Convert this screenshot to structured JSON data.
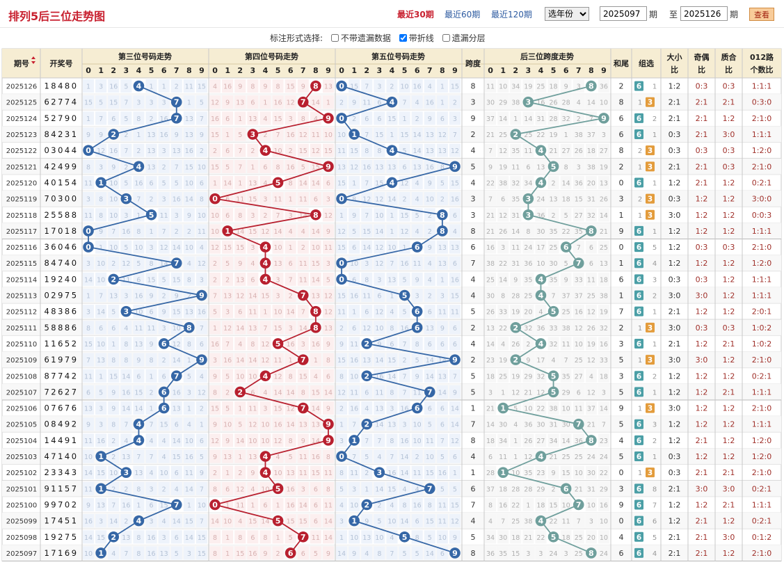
{
  "header": {
    "title": "排列5后三位走势图",
    "links": [
      "最近30期",
      "最近60期",
      "最近120期"
    ],
    "year_select": "选年份",
    "from_value": "2025097",
    "period_label": "期",
    "to_label": "至",
    "to_value": "2025126",
    "view_button": "查看"
  },
  "options": {
    "label": "标注形式选择:",
    "items": [
      {
        "label": "不带遗漏数据",
        "checked": false
      },
      {
        "label": "带折线",
        "checked": true
      },
      {
        "label": "遗漏分层",
        "checked": false
      }
    ]
  },
  "columns": {
    "issue": "期号",
    "draw": "开奖号",
    "pos3": "第三位号码走势",
    "pos4": "第四位号码走势",
    "pos5": "第五位号码走势",
    "span": "跨度",
    "span_trend": "后三位跨度走势",
    "sum_tail": "和尾",
    "group": "组选",
    "size_a": "大小",
    "size_b": "比",
    "odd_a": "奇偶",
    "odd_b": "比",
    "prime_a": "质合",
    "prime_b": "比",
    "r012_a": "012路",
    "r012_b": "个数比",
    "digits": [
      "0",
      "1",
      "2",
      "3",
      "4",
      "5",
      "6",
      "7",
      "8",
      "9"
    ]
  },
  "colors": {
    "pos3": "#3667a6",
    "pos4": "#b8202f",
    "pos5": "#3667a6",
    "span": "#6f9f9c",
    "group_six": "#4b9fa6",
    "group_three": "#e39c3c",
    "ratio": "#a0302a"
  },
  "rows": [
    {
      "issue": "2025126",
      "draw": "18480",
      "span": "8",
      "sum_tail": "2",
      "group": "6",
      "group_miss": "1",
      "size": "1:2",
      "odd": "0:3",
      "prime": "0:3",
      "r012": "1:1:1"
    },
    {
      "issue": "2025125",
      "draw": "62774",
      "span": "3",
      "sum_tail": "8",
      "group": "3",
      "group_miss": "1",
      "size": "2:1",
      "odd": "2:1",
      "prime": "2:1",
      "r012": "0:3:0"
    },
    {
      "issue": "2025124",
      "draw": "52790",
      "span": "9",
      "sum_tail": "6",
      "group": "6",
      "group_miss": "2",
      "size": "2:1",
      "odd": "2:1",
      "prime": "1:2",
      "r012": "2:1:0"
    },
    {
      "issue": "2025123",
      "draw": "84231",
      "span": "2",
      "sum_tail": "6",
      "group": "6",
      "group_miss": "1",
      "size": "0:3",
      "odd": "2:1",
      "prime": "3:0",
      "r012": "1:1:1"
    },
    {
      "issue": "2025122",
      "draw": "03044",
      "span": "4",
      "sum_tail": "8",
      "group": "3",
      "group_miss": "2",
      "size": "0:3",
      "odd": "0:3",
      "prime": "0:3",
      "r012": "1:2:0"
    },
    {
      "issue": "2025121",
      "draw": "42499",
      "span": "5",
      "sum_tail": "2",
      "group": "3",
      "group_miss": "1",
      "size": "2:1",
      "odd": "2:1",
      "prime": "0:3",
      "r012": "2:1:0"
    },
    {
      "issue": "2025120",
      "draw": "40154",
      "span": "4",
      "sum_tail": "0",
      "group": "6",
      "group_miss": "1",
      "size": "1:2",
      "odd": "2:1",
      "prime": "1:2",
      "r012": "0:2:1"
    },
    {
      "issue": "2025119",
      "draw": "70300",
      "span": "3",
      "sum_tail": "3",
      "group": "3",
      "group_miss": "2",
      "size": "0:3",
      "odd": "1:2",
      "prime": "1:2",
      "r012": "3:0:0"
    },
    {
      "issue": "2025118",
      "draw": "25588",
      "span": "3",
      "sum_tail": "1",
      "group": "3",
      "group_miss": "1",
      "size": "3:0",
      "odd": "1:2",
      "prime": "1:2",
      "r012": "0:0:3"
    },
    {
      "issue": "2025117",
      "draw": "17018",
      "span": "8",
      "sum_tail": "9",
      "group": "6",
      "group_miss": "1",
      "size": "1:2",
      "odd": "1:2",
      "prime": "1:2",
      "r012": "1:1:1"
    },
    {
      "issue": "2025116",
      "draw": "36046",
      "span": "6",
      "sum_tail": "0",
      "group": "6",
      "group_miss": "5",
      "size": "1:2",
      "odd": "0:3",
      "prime": "0:3",
      "r012": "2:1:0"
    },
    {
      "issue": "2025115",
      "draw": "84740",
      "span": "7",
      "sum_tail": "1",
      "group": "6",
      "group_miss": "4",
      "size": "1:2",
      "odd": "1:2",
      "prime": "1:2",
      "r012": "1:2:0"
    },
    {
      "issue": "2025114",
      "draw": "19240",
      "span": "4",
      "sum_tail": "6",
      "group": "6",
      "group_miss": "3",
      "size": "0:3",
      "odd": "0:3",
      "prime": "1:2",
      "r012": "1:1:1"
    },
    {
      "issue": "2025113",
      "draw": "02975",
      "span": "4",
      "sum_tail": "1",
      "group": "6",
      "group_miss": "2",
      "size": "3:0",
      "odd": "3:0",
      "prime": "1:2",
      "r012": "1:1:1"
    },
    {
      "issue": "2025112",
      "draw": "48386",
      "span": "5",
      "sum_tail": "7",
      "group": "6",
      "group_miss": "1",
      "size": "2:1",
      "odd": "1:2",
      "prime": "1:2",
      "r012": "2:0:1"
    },
    {
      "issue": "2025111",
      "draw": "58886",
      "span": "2",
      "sum_tail": "2",
      "group": "3",
      "group_miss": "1",
      "size": "3:0",
      "odd": "0:3",
      "prime": "0:3",
      "r012": "1:0:2"
    },
    {
      "issue": "2025110",
      "draw": "11652",
      "span": "4",
      "sum_tail": "3",
      "group": "6",
      "group_miss": "1",
      "size": "2:1",
      "odd": "1:2",
      "prime": "2:1",
      "r012": "1:0:2"
    },
    {
      "issue": "2025109",
      "draw": "61979",
      "span": "2",
      "sum_tail": "5",
      "group": "3",
      "group_miss": "1",
      "size": "3:0",
      "odd": "3:0",
      "prime": "1:2",
      "r012": "2:1:0"
    },
    {
      "issue": "2025108",
      "draw": "87742",
      "span": "5",
      "sum_tail": "3",
      "group": "6",
      "group_miss": "2",
      "size": "1:2",
      "odd": "1:2",
      "prime": "1:2",
      "r012": "0:2:1"
    },
    {
      "issue": "2025107",
      "draw": "72627",
      "span": "5",
      "sum_tail": "5",
      "group": "6",
      "group_miss": "1",
      "size": "1:2",
      "odd": "1:2",
      "prime": "2:1",
      "r012": "1:1:1"
    },
    {
      "issue": "2025106",
      "draw": "07676",
      "span": "1",
      "sum_tail": "9",
      "group": "3",
      "group_miss": "1",
      "size": "3:0",
      "odd": "1:2",
      "prime": "1:2",
      "r012": "2:1:0"
    },
    {
      "issue": "2025105",
      "draw": "08492",
      "span": "7",
      "sum_tail": "5",
      "group": "6",
      "group_miss": "3",
      "size": "1:2",
      "odd": "1:2",
      "prime": "1:2",
      "r012": "1:1:1"
    },
    {
      "issue": "2025104",
      "draw": "14491",
      "span": "8",
      "sum_tail": "4",
      "group": "6",
      "group_miss": "2",
      "size": "1:2",
      "odd": "2:1",
      "prime": "1:2",
      "r012": "1:2:0"
    },
    {
      "issue": "2025103",
      "draw": "47140",
      "span": "4",
      "sum_tail": "5",
      "group": "6",
      "group_miss": "1",
      "size": "0:3",
      "odd": "1:2",
      "prime": "1:2",
      "r012": "1:2:0"
    },
    {
      "issue": "2025102",
      "draw": "23343",
      "span": "1",
      "sum_tail": "0",
      "group": "3",
      "group_miss": "1",
      "size": "0:3",
      "odd": "2:1",
      "prime": "2:1",
      "r012": "2:1:0"
    },
    {
      "issue": "2025101",
      "draw": "91157",
      "span": "6",
      "sum_tail": "3",
      "group": "6",
      "group_miss": "8",
      "size": "2:1",
      "odd": "3:0",
      "prime": "3:0",
      "r012": "0:2:1"
    },
    {
      "issue": "2025100",
      "draw": "99702",
      "span": "7",
      "sum_tail": "9",
      "group": "6",
      "group_miss": "7",
      "size": "1:2",
      "odd": "1:2",
      "prime": "2:1",
      "r012": "1:1:1"
    },
    {
      "issue": "2025099",
      "draw": "17451",
      "span": "4",
      "sum_tail": "0",
      "group": "6",
      "group_miss": "6",
      "size": "1:2",
      "odd": "2:1",
      "prime": "1:2",
      "r012": "0:2:1"
    },
    {
      "issue": "2025098",
      "draw": "19275",
      "span": "5",
      "sum_tail": "4",
      "group": "6",
      "group_miss": "5",
      "size": "2:1",
      "odd": "2:1",
      "prime": "3:0",
      "r012": "0:1:2"
    },
    {
      "issue": "2025097",
      "draw": "17169",
      "span": "8",
      "sum_tail": "6",
      "group": "6",
      "group_miss": "4",
      "size": "2:1",
      "odd": "2:1",
      "prime": "1:2",
      "r012": "2:1:0"
    }
  ]
}
